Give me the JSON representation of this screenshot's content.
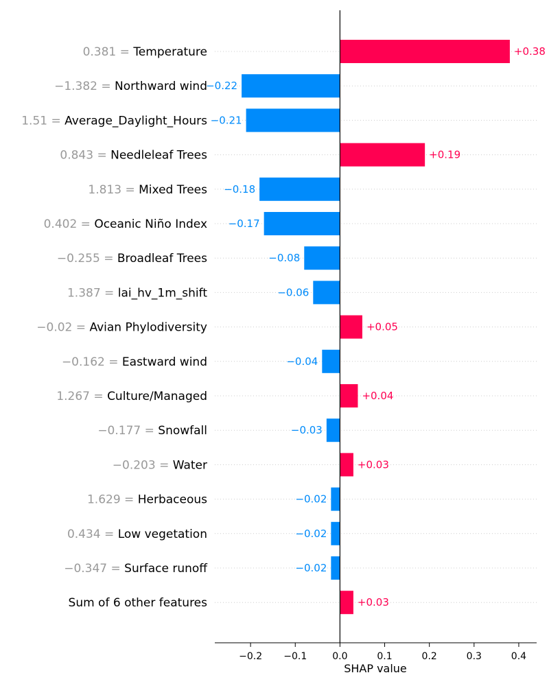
{
  "chart_data": {
    "type": "bar",
    "orientation": "horizontal",
    "xlabel": "SHAP value",
    "xlim": [
      -0.28,
      0.44
    ],
    "xticks": [
      -0.2,
      -0.1,
      0.0,
      0.1,
      0.2,
      0.3,
      0.4
    ],
    "xtick_labels": [
      "−0.2",
      "−0.1",
      "0.0",
      "0.1",
      "0.2",
      "0.3",
      "0.4"
    ],
    "grid": "dotted horizontal row lines",
    "features": [
      {
        "value_text": "0.381",
        "name": "Temperature",
        "shap": 0.38,
        "label": "+0.38"
      },
      {
        "value_text": "−1.382",
        "name": "Northward wind",
        "shap": -0.22,
        "label": "−0.22"
      },
      {
        "value_text": "1.51",
        "name": "Average_Daylight_Hours",
        "shap": -0.21,
        "label": "−0.21"
      },
      {
        "value_text": "0.843",
        "name": "Needleleaf Trees",
        "shap": 0.19,
        "label": "+0.19"
      },
      {
        "value_text": "1.813",
        "name": "Mixed Trees",
        "shap": -0.18,
        "label": "−0.18"
      },
      {
        "value_text": "0.402",
        "name": "Oceanic Niño Index",
        "shap": -0.17,
        "label": "−0.17"
      },
      {
        "value_text": "−0.255",
        "name": "Broadleaf Trees",
        "shap": -0.08,
        "label": "−0.08"
      },
      {
        "value_text": "1.387",
        "name": "lai_hv_1m_shift",
        "shap": -0.06,
        "label": "−0.06"
      },
      {
        "value_text": "−0.02",
        "name": "Avian Phylodiversity",
        "shap": 0.05,
        "label": "+0.05"
      },
      {
        "value_text": "−0.162",
        "name": "Eastward wind",
        "shap": -0.04,
        "label": "−0.04"
      },
      {
        "value_text": "1.267",
        "name": "Culture/Managed",
        "shap": 0.04,
        "label": "+0.04"
      },
      {
        "value_text": "−0.177",
        "name": "Snowfall",
        "shap": -0.03,
        "label": "−0.03"
      },
      {
        "value_text": "−0.203",
        "name": "Water",
        "shap": 0.03,
        "label": "+0.03"
      },
      {
        "value_text": "1.629",
        "name": "Herbaceous",
        "shap": -0.02,
        "label": "−0.02"
      },
      {
        "value_text": "0.434",
        "name": "Low vegetation",
        "shap": -0.02,
        "label": "−0.02"
      },
      {
        "value_text": "−0.347",
        "name": "Surface runoff",
        "shap": -0.02,
        "label": "−0.02"
      },
      {
        "value_text": "",
        "name": "Sum of 6 other features",
        "shap": 0.03,
        "label": "+0.03"
      }
    ],
    "colors": {
      "positive": "#ff0051",
      "negative": "#008bfb",
      "feature_value": "#999999",
      "grid": "#cccccc"
    }
  }
}
